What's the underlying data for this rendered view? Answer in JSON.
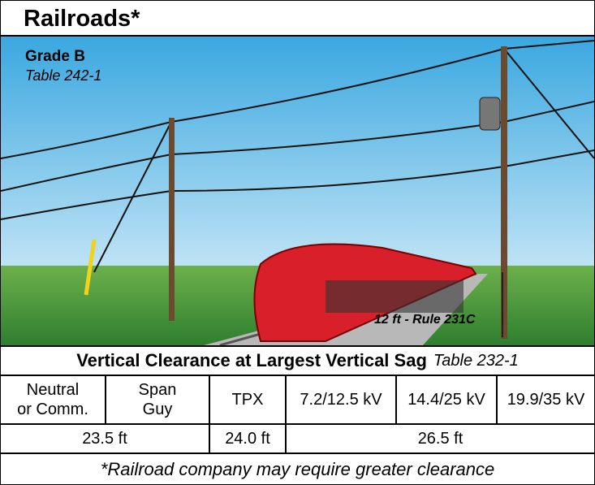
{
  "header": {
    "title": "Railroads*"
  },
  "illustration": {
    "grade": "Grade B",
    "grade_table": "Table 242-1",
    "annotation": "12 ft - Rule 231C"
  },
  "table": {
    "title": "Vertical Clearance at Largest Vertical Sag",
    "reference": "Table 232-1",
    "headers": [
      [
        "Neutral",
        "or Comm."
      ],
      [
        "Span",
        "Guy"
      ],
      [
        "TPX"
      ],
      [
        "7.2/12.5 kV"
      ],
      [
        "14.4/25 kV"
      ],
      [
        "19.9/35 kV"
      ]
    ],
    "values": [
      "23.5 ft",
      "24.0  ft",
      "26.5 ft"
    ]
  },
  "footnote": "*Railroad company may require greater clearance"
}
